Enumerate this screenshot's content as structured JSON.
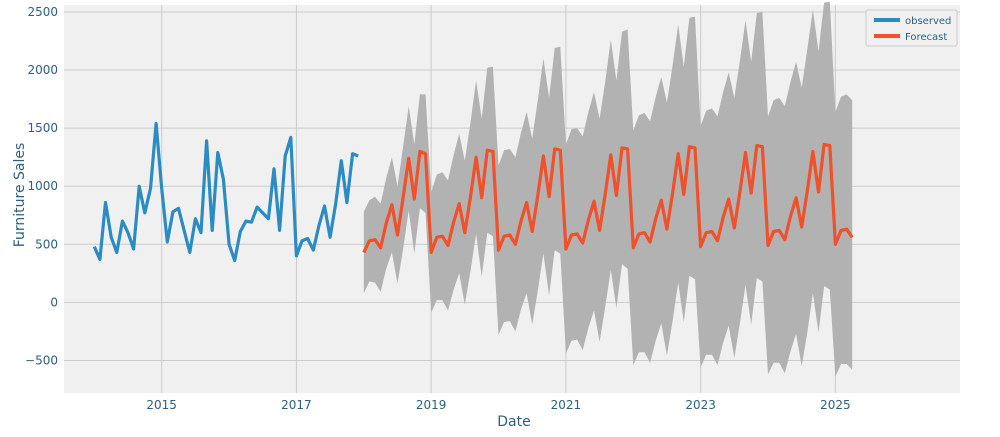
{
  "chart_data": {
    "type": "line",
    "title": "",
    "xlabel": "Date",
    "ylabel": "Furniture Sales",
    "xlim": [
      2013.55,
      2026.85
    ],
    "ylim": [
      -780,
      2560
    ],
    "x_ticks": [
      2015,
      2017,
      2019,
      2021,
      2023,
      2025
    ],
    "x_tick_labels": [
      "2015",
      "2017",
      "2019",
      "2021",
      "2023",
      "2025"
    ],
    "y_ticks": [
      -500,
      0,
      500,
      1000,
      1500,
      2000,
      2500
    ],
    "y_tick_labels": [
      "−500",
      "0",
      "500",
      "1000",
      "1500",
      "2000",
      "2500"
    ],
    "grid": true,
    "legend_position": "top-right",
    "colors": {
      "observed": "#2b8cc4",
      "forecast": "#f0502a",
      "interval": "#b2b2b2",
      "plot_background": "#f0f0f0",
      "grid": "#cbcbcb"
    },
    "series": [
      {
        "name": "observed",
        "start": 2014.0,
        "step": 0.0833333,
        "values": [
          480,
          370,
          860,
          560,
          430,
          700,
          600,
          460,
          1000,
          770,
          980,
          1540,
          980,
          520,
          780,
          810,
          620,
          430,
          720,
          600,
          1390,
          620,
          1290,
          1060,
          500,
          360,
          610,
          700,
          690,
          820,
          770,
          720,
          1150,
          620,
          1260,
          1420,
          400,
          530,
          550,
          450,
          660,
          830,
          560,
          850,
          1220,
          860,
          1280,
          1260
        ]
      },
      {
        "name": "Forecast",
        "start": 2018.0,
        "step": 0.0833333,
        "values": [
          430,
          530,
          540,
          470,
          680,
          840,
          580,
          900,
          1240,
          890,
          1300,
          1280,
          430,
          560,
          570,
          490,
          690,
          850,
          600,
          910,
          1250,
          900,
          1310,
          1300,
          450,
          570,
          580,
          500,
          700,
          860,
          610,
          920,
          1260,
          910,
          1320,
          1310,
          460,
          580,
          590,
          510,
          710,
          870,
          620,
          930,
          1270,
          920,
          1330,
          1320,
          470,
          590,
          600,
          520,
          720,
          880,
          630,
          940,
          1280,
          930,
          1340,
          1330,
          480,
          600,
          610,
          530,
          730,
          890,
          640,
          950,
          1290,
          940,
          1350,
          1340,
          490,
          610,
          620,
          540,
          740,
          900,
          650,
          960,
          1300,
          950,
          1360,
          1350,
          500,
          620,
          630,
          560
        ],
        "lower": [
          80,
          180,
          170,
          90,
          290,
          430,
          160,
          460,
          790,
          420,
          810,
          770,
          -90,
          20,
          20,
          -70,
          110,
          250,
          -20,
          270,
          590,
          220,
          600,
          570,
          -280,
          -170,
          -160,
          -250,
          -60,
          80,
          -190,
          100,
          420,
          60,
          450,
          420,
          -440,
          -330,
          -320,
          -410,
          -220,
          -70,
          -340,
          -40,
          280,
          -50,
          330,
          290,
          -540,
          -430,
          -430,
          -520,
          -330,
          -180,
          -460,
          -160,
          170,
          -170,
          230,
          200,
          -560,
          -450,
          -450,
          -540,
          -350,
          -200,
          -480,
          -180,
          150,
          -190,
          210,
          180,
          -620,
          -520,
          -520,
          -610,
          -420,
          -270,
          -550,
          -260,
          80,
          -260,
          140,
          110,
          -640,
          -530,
          -530,
          -580
        ],
        "upper": [
          780,
          880,
          910,
          850,
          1070,
          1250,
          1000,
          1340,
          1690,
          1360,
          1790,
          1790,
          950,
          1100,
          1120,
          1050,
          1270,
          1450,
          1220,
          1550,
          1910,
          1580,
          2020,
          2030,
          1180,
          1310,
          1320,
          1250,
          1460,
          1640,
          1410,
          1740,
          2100,
          1760,
          2190,
          2200,
          1360,
          1490,
          1500,
          1430,
          1640,
          1810,
          1580,
          1900,
          2260,
          1910,
          2330,
          2350,
          1480,
          1610,
          1630,
          1560,
          1770,
          1940,
          1720,
          2040,
          2390,
          2030,
          2450,
          2460,
          1520,
          1650,
          1670,
          1600,
          1810,
          1980,
          1760,
          2080,
          2430,
          2070,
          2490,
          2500,
          1600,
          1740,
          1760,
          1690,
          1900,
          2070,
          1850,
          2180,
          2520,
          2160,
          2580,
          2590,
          1640,
          1770,
          1790,
          1740
        ]
      }
    ],
    "legend": [
      {
        "label": "observed",
        "color": "#2b8cc4"
      },
      {
        "label": "Forecast",
        "color": "#f0502a"
      }
    ]
  }
}
